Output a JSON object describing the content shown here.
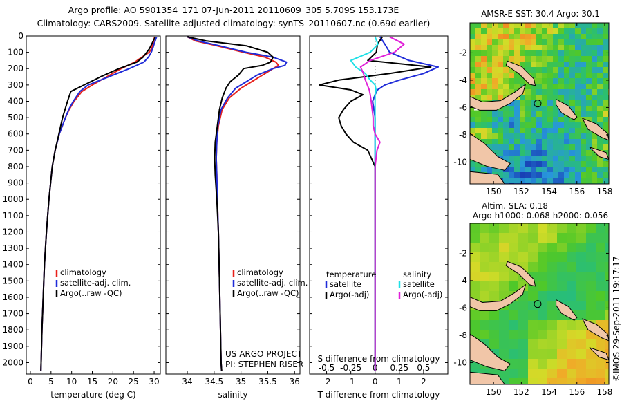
{
  "header": {
    "line1": "Argo profile: AO 5901354_171 07-Jun-2011 20110609_305 5.709S 153.173E",
    "line2": "Climatology: CARS2009. Satellite-adjusted climatology: synTS_20110607.nc (0.69d earlier)"
  },
  "colors": {
    "climatology": "#e8201a",
    "satellite": "#1f2bd8",
    "argo": "#000000",
    "sat_salinity": "#1fe0e6",
    "argo_salinity": "#e020d8",
    "land": "#f1c6a8"
  },
  "depth_ticks": [
    0,
    100,
    200,
    300,
    400,
    500,
    600,
    700,
    800,
    900,
    1000,
    1100,
    1200,
    1300,
    1400,
    1500,
    1600,
    1700,
    1800,
    1900,
    2000
  ],
  "chart_data": [
    {
      "type": "line",
      "id": "temperature",
      "xlabel": "temperature (deg C)",
      "xlim": [
        -1,
        31.5
      ],
      "ylim": [
        2070,
        0
      ],
      "xticks": [
        0,
        5,
        10,
        15,
        20,
        25,
        30
      ],
      "legend": [
        "climatology",
        "satellite-adj. clim.",
        "Argo(..raw -QC)"
      ],
      "depth": [
        5,
        20,
        50,
        80,
        100,
        130,
        160,
        200,
        250,
        300,
        340,
        400,
        450,
        500,
        600,
        700,
        800,
        900,
        1000,
        1200,
        1400,
        1600,
        1800,
        2000,
        2050
      ],
      "series": [
        {
          "name": "climatology",
          "color": "#e8201a",
          "values": [
            30.1,
            30.0,
            29.7,
            29.3,
            28.8,
            27.0,
            25.3,
            22.0,
            18.5,
            15.0,
            12.5,
            10.6,
            9.4,
            8.5,
            7.0,
            6.0,
            5.3,
            4.9,
            4.5,
            3.9,
            3.4,
            3.1,
            2.8,
            2.6,
            2.55
          ]
        },
        {
          "name": "satellite-adj. clim.",
          "color": "#1f2bd8",
          "values": [
            30.6,
            30.4,
            30.0,
            29.6,
            29.3,
            28.6,
            27.5,
            24.0,
            19.0,
            14.0,
            12.0,
            10.4,
            9.3,
            8.5,
            7.0,
            6.0,
            5.3,
            4.9,
            4.5,
            3.9,
            3.4,
            3.1,
            2.8,
            2.6,
            2.55
          ]
        },
        {
          "name": "Argo(..raw -QC)",
          "color": "#000000",
          "values": [
            30.3,
            30.0,
            29.4,
            28.8,
            28.2,
            27.3,
            25.8,
            21.5,
            17.0,
            13.0,
            9.8,
            9.0,
            8.4,
            7.8,
            6.9,
            6.0,
            5.3,
            4.9,
            4.5,
            3.9,
            3.4,
            3.1,
            2.8,
            2.6,
            2.55
          ]
        }
      ]
    },
    {
      "type": "line",
      "id": "salinity",
      "xlabel": "salinity",
      "xlim": [
        33.6,
        36.1
      ],
      "ylim": [
        2070,
        0
      ],
      "xticks": [
        34,
        34.5,
        35,
        35.5,
        36
      ],
      "legend": [
        "climatology",
        "satellite-adj. clim.",
        "Argo(..raw -QC)"
      ],
      "depth": [
        5,
        30,
        60,
        100,
        130,
        160,
        180,
        200,
        240,
        280,
        320,
        380,
        450,
        550,
        650,
        750,
        850,
        1000,
        1200,
        1500,
        2000,
        2050
      ],
      "series": [
        {
          "name": "climatology",
          "color": "#e8201a",
          "values": [
            34.0,
            34.15,
            34.55,
            35.05,
            35.45,
            35.65,
            35.7,
            35.6,
            35.4,
            35.2,
            35.0,
            34.78,
            34.65,
            34.58,
            34.55,
            34.54,
            34.55,
            34.56,
            34.58,
            34.6,
            34.63,
            34.64
          ]
        },
        {
          "name": "satellite-adj. clim.",
          "color": "#1f2bd8",
          "values": [
            34.0,
            34.2,
            34.6,
            35.1,
            35.6,
            35.85,
            35.82,
            35.6,
            35.3,
            35.1,
            34.9,
            34.75,
            34.63,
            34.57,
            34.55,
            34.54,
            34.55,
            34.56,
            34.58,
            34.6,
            34.63,
            34.64
          ]
        },
        {
          "name": "Argo(..raw -QC)",
          "color": "#000000",
          "values": [
            34.0,
            34.35,
            35.1,
            35.5,
            35.6,
            35.55,
            35.4,
            35.05,
            34.95,
            34.8,
            34.72,
            34.65,
            34.6,
            34.56,
            34.52,
            34.51,
            34.52,
            34.55,
            34.58,
            34.6,
            34.63,
            34.64
          ]
        }
      ],
      "project_line1": "US ARGO PROJECT",
      "project_line2": "PI: STEPHEN RISER"
    },
    {
      "type": "line",
      "id": "difference",
      "xlabel": "T difference from climatology",
      "xlabel_top": "S difference from climatology",
      "xlim": [
        -2.7,
        3.0
      ],
      "ylim": [
        2070,
        0
      ],
      "xticks": [
        -2,
        -1,
        0,
        1,
        2
      ],
      "top_tick_labels": [
        "-0.5",
        "-0.25",
        "0",
        "0.25",
        "0.5"
      ],
      "top_ticks_values": [
        -0.5,
        -0.25,
        0,
        0.25,
        0.5
      ],
      "legend_left_title": "temperature",
      "legend_right_title": "salinity",
      "legend_left": [
        "satellite",
        "Argo(-adj)"
      ],
      "legend_right": [
        "satellite",
        "Argo(-adj)"
      ],
      "depth": [
        5,
        50,
        100,
        150,
        190,
        230,
        270,
        300,
        330,
        360,
        400,
        450,
        500,
        550,
        600,
        650,
        700,
        800,
        1000,
        1500,
        2000,
        2050
      ],
      "series": [
        {
          "name": "T satellite",
          "color": "#1f2bd8",
          "values": [
            0.2,
            0.4,
            0.6,
            1.4,
            2.6,
            2.0,
            1.0,
            0.4,
            0.1,
            0.0,
            -0.1,
            -0.05,
            0.0,
            0.0,
            0.0,
            0.0,
            0.0,
            0.0,
            0.0,
            0.0,
            0.0,
            0.0
          ]
        },
        {
          "name": "T Argo(-adj)",
          "color": "#000000",
          "values": [
            0.3,
            0.1,
            0.05,
            -0.3,
            2.3,
            0.6,
            -1.5,
            -2.3,
            -1.0,
            -0.5,
            -1.0,
            -1.3,
            -1.5,
            -1.4,
            -1.2,
            -0.9,
            -0.3,
            0.0,
            0.0,
            0.0,
            0.0,
            0.0
          ]
        },
        {
          "name": "S satellite",
          "color": "#1fe0e6",
          "values": [
            0.0,
            0.03,
            -0.05,
            -0.25,
            -0.2,
            -0.1,
            -0.05,
            0.0,
            0.01,
            0.0,
            0.0,
            0.0,
            0.0,
            0.0,
            0.0,
            0.0,
            0.0,
            0.0,
            0.0,
            0.0,
            0.0,
            0.0
          ]
        },
        {
          "name": "S Argo(-adj)",
          "color": "#e020d8",
          "values": [
            0.15,
            0.3,
            0.2,
            -0.05,
            -0.15,
            -0.12,
            -0.1,
            -0.08,
            -0.06,
            -0.05,
            -0.04,
            -0.03,
            -0.02,
            -0.02,
            0.0,
            0.05,
            0.02,
            0.0,
            0.0,
            0.0,
            0.0,
            0.0
          ]
        }
      ]
    }
  ],
  "maps": [
    {
      "title_lines": [
        "AMSR-E SST: 30.4  Argo: 30.1"
      ],
      "xticks": [
        150,
        152,
        154,
        156,
        158
      ],
      "yticks": [
        -2,
        -4,
        -6,
        -8,
        -10
      ],
      "xlim": [
        148.3,
        158.3
      ],
      "ylim": [
        -11.6,
        0.2
      ]
    },
    {
      "title_lines": [
        "Altim. SLA: 0.18",
        "Argo h1000: 0.068 h2000: 0.056"
      ],
      "xticks": [
        150,
        152,
        154,
        156,
        158
      ],
      "yticks": [
        -2,
        -4,
        -6,
        -8,
        -10
      ],
      "xlim": [
        148.3,
        158.3
      ],
      "ylim": [
        -11.6,
        0.2
      ]
    }
  ],
  "argo_position": {
    "lon": 153.173,
    "lat": -5.709
  },
  "footer_stamp": "©IMOS 29-Sep-2011 19:17:17"
}
